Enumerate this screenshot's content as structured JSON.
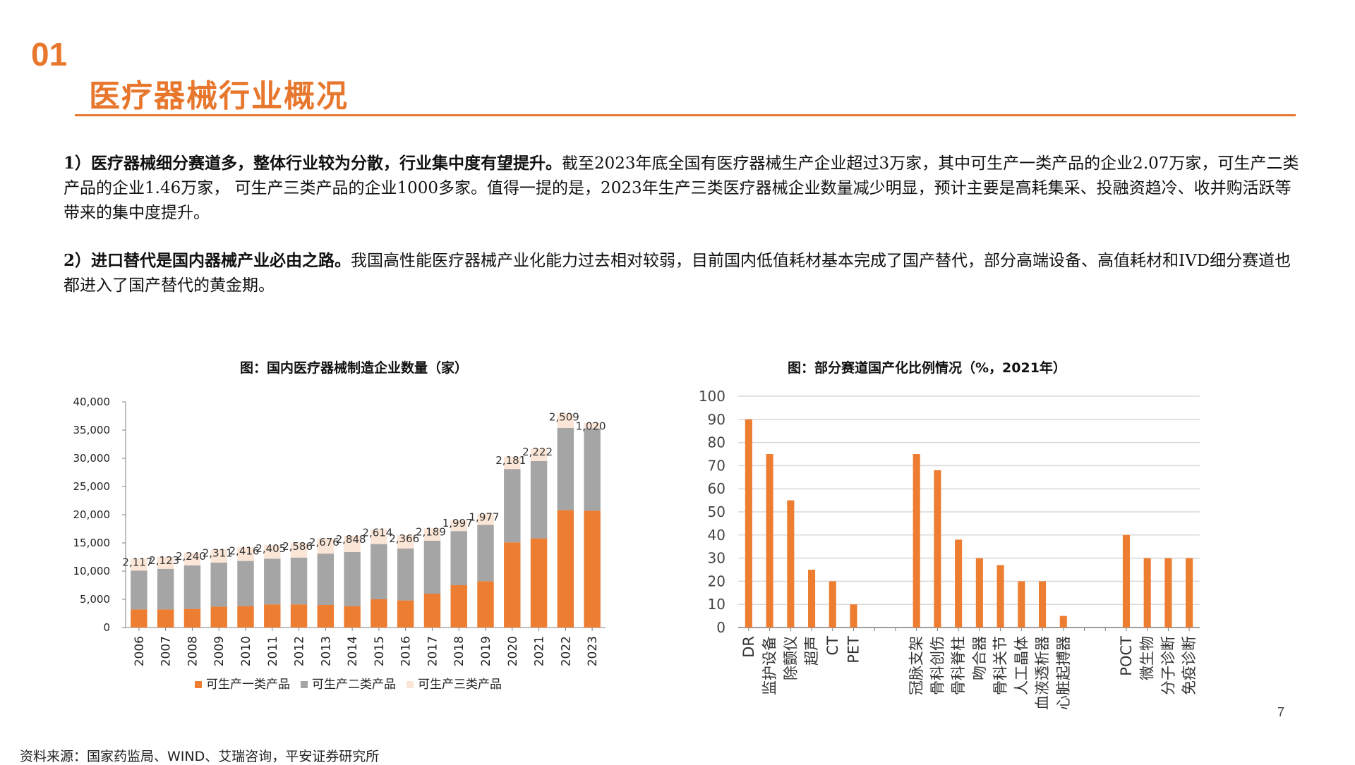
{
  "section_number": "01",
  "page_title": "医疗器械行业概况",
  "paragraphs": [
    {
      "lead": "1）医疗器械细分赛道多，整体行业较为分散，行业集中度有望提升。",
      "body": "截至2023年底全国有医疗器械生产企业超过3万家，其中可生产一类产品的企业2.07万家，可生产二类产品的企业1.46万家， 可生产三类产品的企业1000多家。值得一提的是，2023年生产三类医疗器械企业数量减少明显，预计主要是高耗集采、投融资趋冷、收并购活跃等带来的集中度提升。"
    },
    {
      "lead": "2）进口替代是国内器械产业必由之路。",
      "body": "我国高性能医疗器械产业化能力过去相对较弱，目前国内低值耗材基本完成了国产替代，部分高端设备、高值耗材和IVD细分赛道也都进入了国产替代的黄金期。"
    }
  ],
  "colors": {
    "accent": "#e8772e",
    "class1": "#ED7D31",
    "class2": "#A5A5A5",
    "class3": "#FBE5D6",
    "grid": "#d9d9d9",
    "axis": "#7f7f7f"
  },
  "chart_data": [
    {
      "type": "bar",
      "stacked": true,
      "title": "图：国内医疗器械制造企业数量（家）",
      "categories": [
        "2006",
        "2007",
        "2008",
        "2009",
        "2010",
        "2011",
        "2012",
        "2013",
        "2014",
        "2015",
        "2016",
        "2017",
        "2018",
        "2019",
        "2020",
        "2021",
        "2022",
        "2023"
      ],
      "series": [
        {
          "name": "可生产一类产品",
          "color": "#ED7D31",
          "values": [
            3200,
            3200,
            3300,
            3700,
            3800,
            4100,
            4100,
            4000,
            3800,
            5000,
            4800,
            6000,
            7500,
            8200,
            15100,
            15800,
            20800,
            20700
          ]
        },
        {
          "name": "可生产二类产品",
          "color": "#A5A5A5",
          "values": [
            6900,
            7200,
            7700,
            7800,
            8000,
            8100,
            8300,
            9100,
            9600,
            9800,
            9200,
            9400,
            9600,
            10000,
            13000,
            13700,
            14600,
            14600
          ]
        },
        {
          "name": "可生产三类产品",
          "color": "#FBE5D6",
          "values": [
            2117,
            2123,
            2240,
            2311,
            2416,
            2405,
            2586,
            2676,
            2848,
            2614,
            2366,
            2189,
            1997,
            1977,
            2181,
            2222,
            2509,
            1020
          ]
        }
      ],
      "data_labels": [
        "2,117",
        "2,123",
        "2,240",
        "2,311",
        "2,416",
        "2,405",
        "2,586",
        "2,676",
        "2,848",
        "2,614",
        "2,366",
        "2,189",
        "1,997",
        "1,977",
        "2,181",
        "2,222",
        "2,509",
        "1,020"
      ],
      "y_ticks": [
        "0",
        "5,000",
        "10,000",
        "15,000",
        "20,000",
        "25,000",
        "30,000",
        "35,000",
        "40,000"
      ],
      "ylim": [
        0,
        40000
      ],
      "grid": false,
      "legend_position": "bottom"
    },
    {
      "type": "bar",
      "title": "图：部分赛道国产化比例情况（%，2021年）",
      "groups": [
        {
          "categories": [
            "DR",
            "监护设备",
            "除颤仪",
            "超声",
            "CT",
            "PET"
          ],
          "values": [
            90,
            75,
            55,
            25,
            20,
            10
          ]
        },
        {
          "categories": [
            "冠脉支架",
            "骨科创伤",
            "骨科脊柱",
            "吻合器",
            "骨科关节",
            "人工晶体",
            "血液透析器",
            "心脏起搏器"
          ],
          "values": [
            75,
            68,
            38,
            30,
            27,
            20,
            20,
            5
          ]
        },
        {
          "categories": [
            "POCT",
            "微生物",
            "分子诊断",
            "免疫诊断"
          ],
          "values": [
            40,
            30,
            30,
            30
          ]
        }
      ],
      "y_ticks": [
        "0",
        "10",
        "20",
        "30",
        "40",
        "50",
        "60",
        "70",
        "80",
        "90",
        "100"
      ],
      "ylim": [
        0,
        100
      ],
      "grid": true,
      "color": "#ED7D31"
    }
  ],
  "source": "资料来源：国家药监局、WIND、艾瑞咨询，平安证券研究所",
  "page_number": "7"
}
